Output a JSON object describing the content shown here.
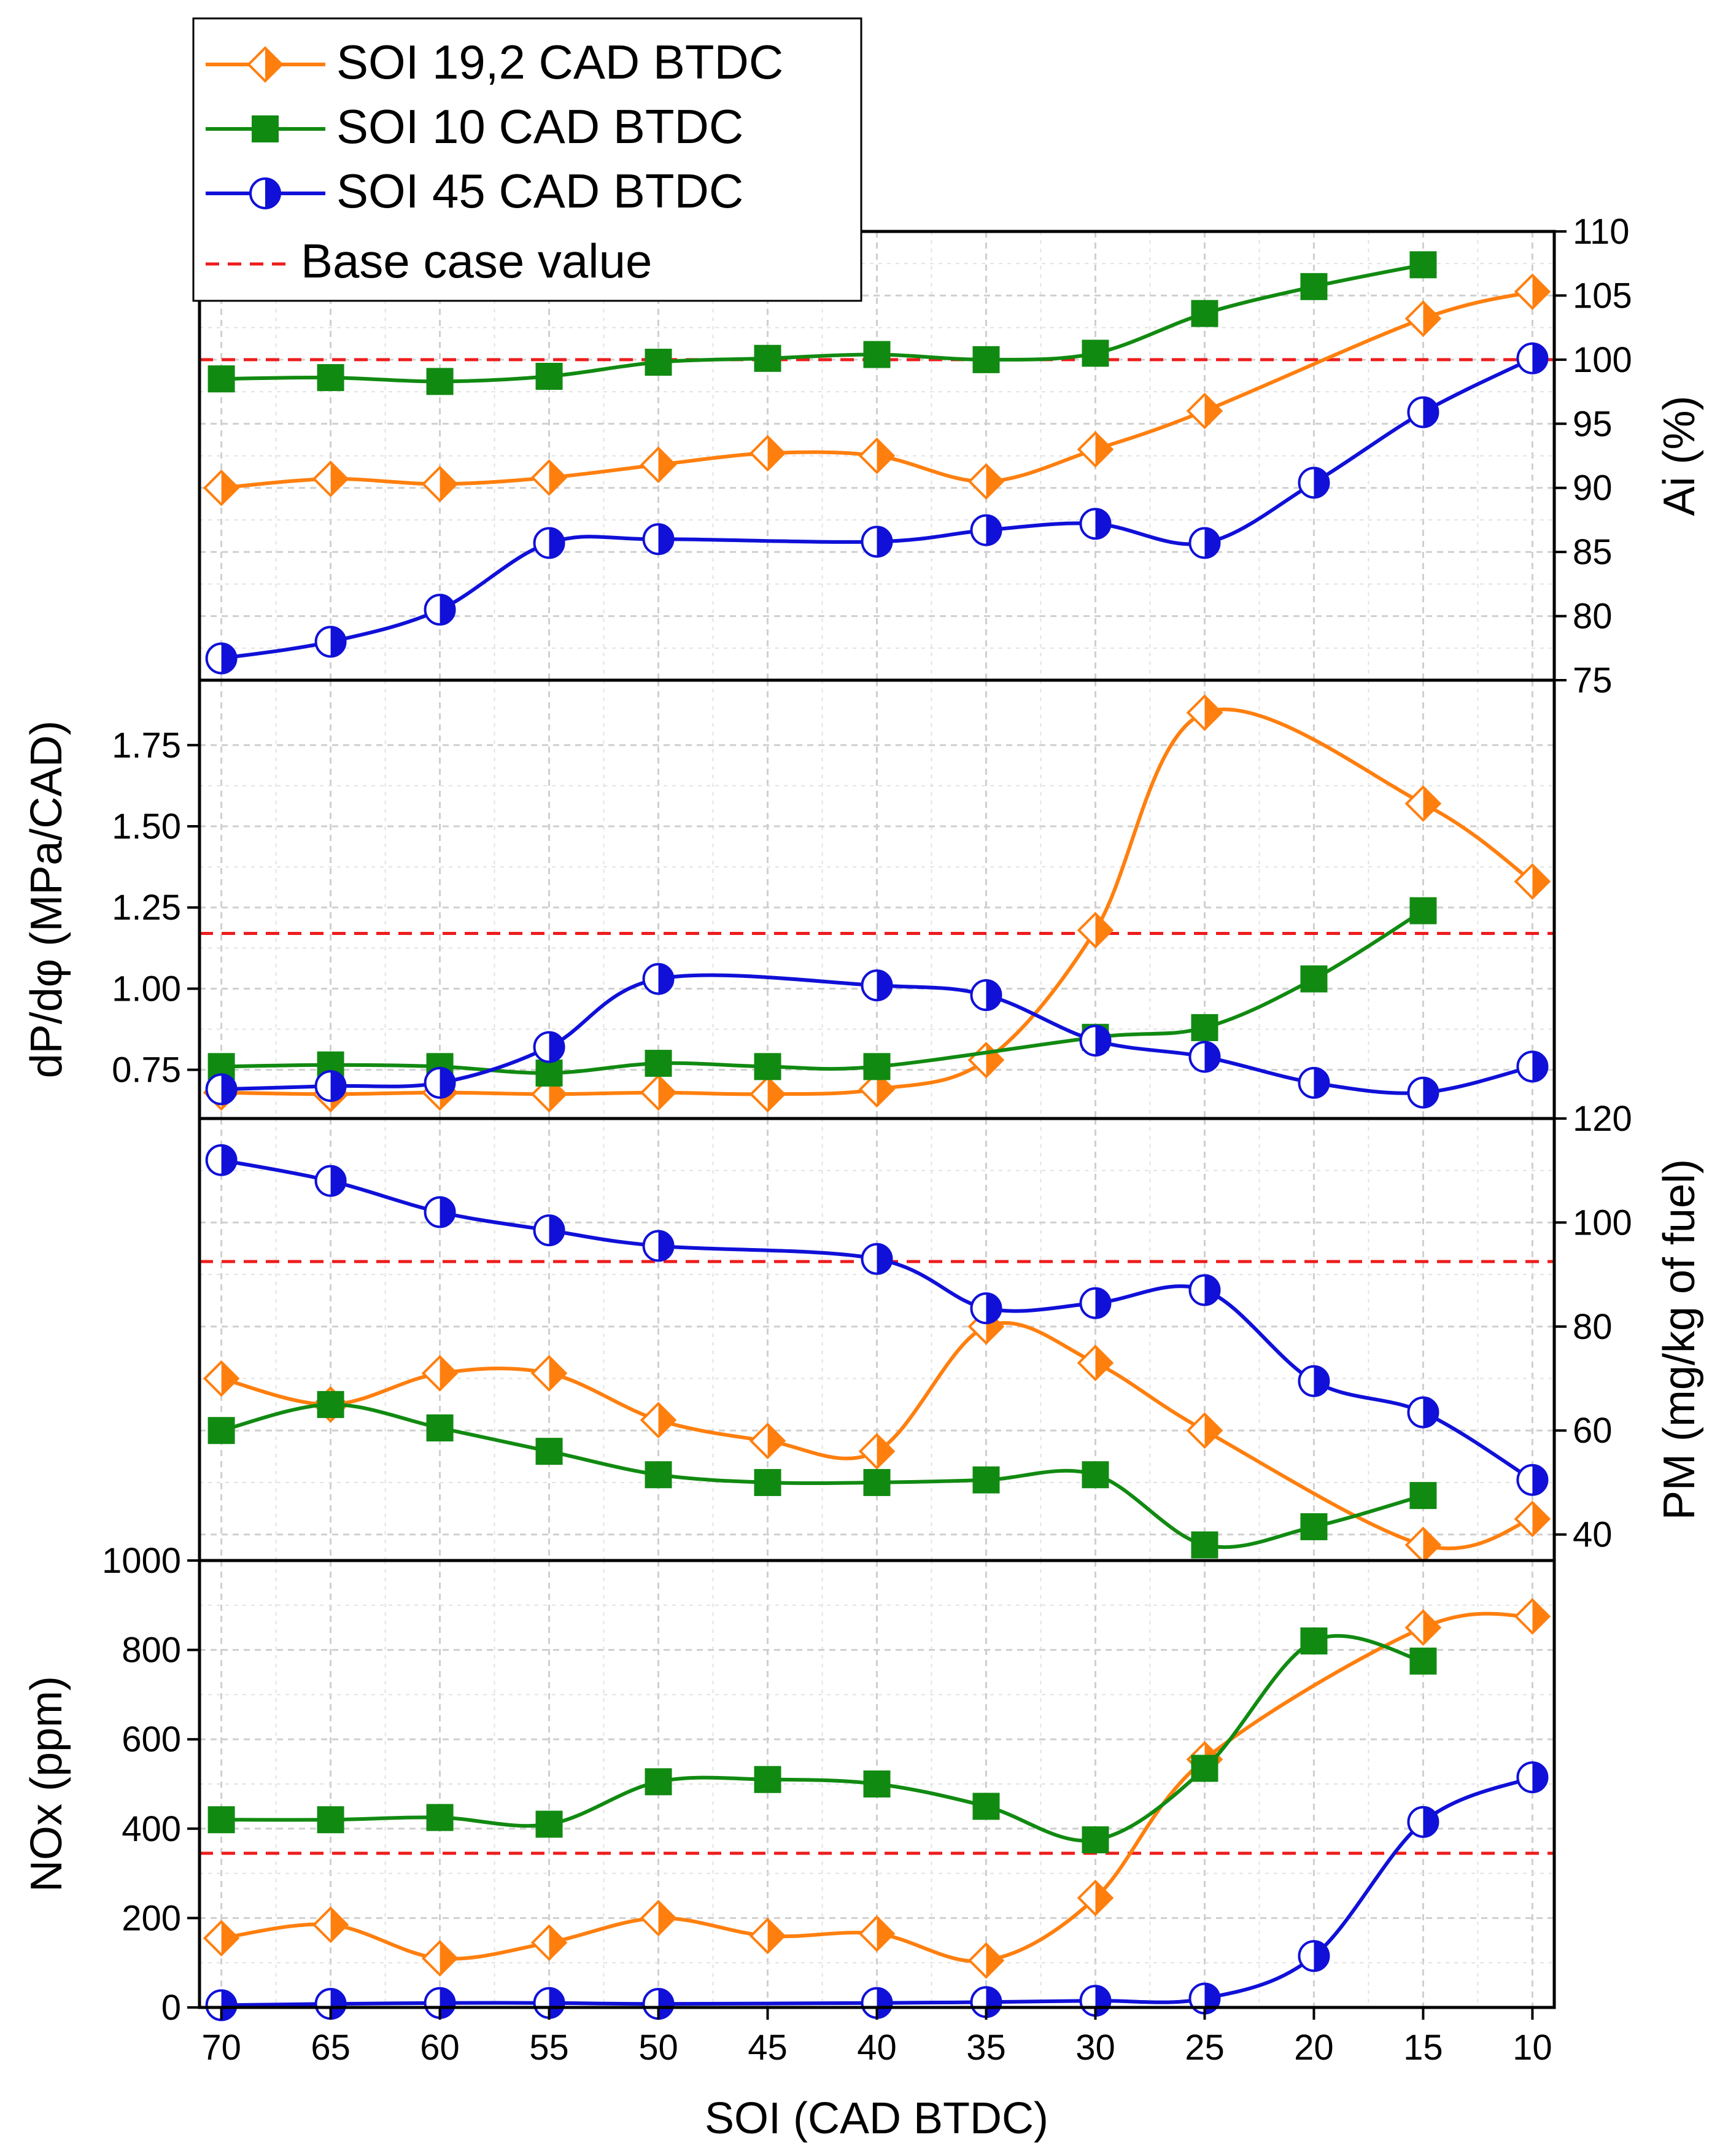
{
  "chart_data": {
    "type": "line",
    "x": [
      70,
      65,
      60,
      55,
      50,
      45,
      40,
      35,
      30,
      25,
      20,
      15,
      10
    ],
    "xlabel": "SOI (CAD BTDC)",
    "xlim": [
      71,
      9
    ],
    "xticks": [
      70,
      65,
      60,
      55,
      50,
      45,
      40,
      35,
      30,
      25,
      20,
      15,
      10
    ],
    "legend": {
      "placement": "top-left",
      "entries": [
        {
          "key": "s19",
          "label": "SOI 19,2 CAD BTDC",
          "color": "#ff7f0e",
          "marker": "diamond-half"
        },
        {
          "key": "s10",
          "label": "SOI 10 CAD BTDC",
          "color": "#118a11",
          "marker": "square"
        },
        {
          "key": "s45",
          "label": "SOI 45 CAD BTDC",
          "color": "#1010d8",
          "marker": "circle-half"
        },
        {
          "key": "base",
          "label": "Base case value",
          "color": "#ee1c1c",
          "marker": "dashed-line"
        }
      ]
    },
    "panels": [
      {
        "id": "ai",
        "ylabel": "Ai (%)",
        "yaxis_side": "right",
        "ylim": [
          75,
          110
        ],
        "yticks": [
          75,
          80,
          85,
          90,
          95,
          100,
          105,
          110
        ],
        "base_case": 100,
        "series": [
          {
            "key": "s19",
            "values": [
              90,
              90.7,
              90.3,
              90.8,
              91.8,
              92.7,
              92.5,
              90.5,
              93,
              96,
              null,
              103.2,
              105.3
            ]
          },
          {
            "key": "s10",
            "values": [
              98.5,
              98.6,
              98.3,
              98.7,
              99.8,
              100.1,
              100.4,
              100,
              100.5,
              103.6,
              105.7,
              107.4,
              null
            ]
          },
          {
            "key": "s45",
            "values": [
              76.7,
              78,
              80.5,
              85.7,
              86,
              null,
              85.8,
              86.7,
              87.2,
              85.7,
              90.4,
              95.9,
              100.1
            ]
          }
        ]
      },
      {
        "id": "dpdphi",
        "ylabel": "dP/dφ (MPa/CAD)",
        "yaxis_side": "left",
        "ylim": [
          0.6,
          1.95
        ],
        "yticks": [
          0.75,
          1.0,
          1.25,
          1.5,
          1.75
        ],
        "base_case": 1.17,
        "series": [
          {
            "key": "s19",
            "values": [
              0.68,
              0.675,
              0.68,
              0.675,
              0.68,
              0.675,
              0.69,
              0.78,
              1.18,
              1.85,
              null,
              1.57,
              1.33
            ]
          },
          {
            "key": "s10",
            "values": [
              0.76,
              0.765,
              0.76,
              0.74,
              0.77,
              0.76,
              0.76,
              null,
              0.85,
              0.88,
              1.03,
              1.24,
              null
            ]
          },
          {
            "key": "s45",
            "values": [
              0.69,
              0.7,
              0.71,
              0.82,
              1.03,
              null,
              1.01,
              0.98,
              0.84,
              0.79,
              0.71,
              0.68,
              0.76
            ]
          }
        ]
      },
      {
        "id": "pm",
        "ylabel": "PM (mg/kg of fuel)",
        "yaxis_side": "right",
        "ylim": [
          35,
          120
        ],
        "yticks": [
          40,
          60,
          80,
          100,
          120
        ],
        "base_case": 92.5,
        "series": [
          {
            "key": "s19",
            "values": [
              70,
              65,
              71,
              71,
              62,
              58,
              56,
              80,
              73,
              60,
              null,
              38,
              43
            ]
          },
          {
            "key": "s10",
            "values": [
              60,
              65,
              60.5,
              56,
              51.5,
              50,
              50,
              50.5,
              51.5,
              38,
              41.5,
              47.5,
              null
            ]
          },
          {
            "key": "s45",
            "values": [
              112,
              108,
              102,
              98.5,
              95.5,
              null,
              93,
              83.5,
              84.5,
              87,
              69.5,
              63.5,
              50.5
            ]
          }
        ]
      },
      {
        "id": "nox",
        "ylabel": "NOx (ppm)",
        "yaxis_side": "left",
        "ylim": [
          0,
          1000
        ],
        "yticks": [
          0,
          200,
          400,
          600,
          800,
          1000
        ],
        "base_case": 345,
        "series": [
          {
            "key": "s19",
            "values": [
              155,
              185,
              110,
              145,
              200,
              160,
              165,
              105,
              245,
              555,
              null,
              850,
              875
            ]
          },
          {
            "key": "s10",
            "values": [
              420,
              420,
              425,
              410,
              505,
              510,
              500,
              450,
              375,
              535,
              820,
              775,
              null
            ]
          },
          {
            "key": "s45",
            "values": [
              5,
              8,
              10,
              10,
              8,
              null,
              10,
              12,
              15,
              20,
              115,
              415,
              515
            ]
          }
        ]
      }
    ]
  }
}
